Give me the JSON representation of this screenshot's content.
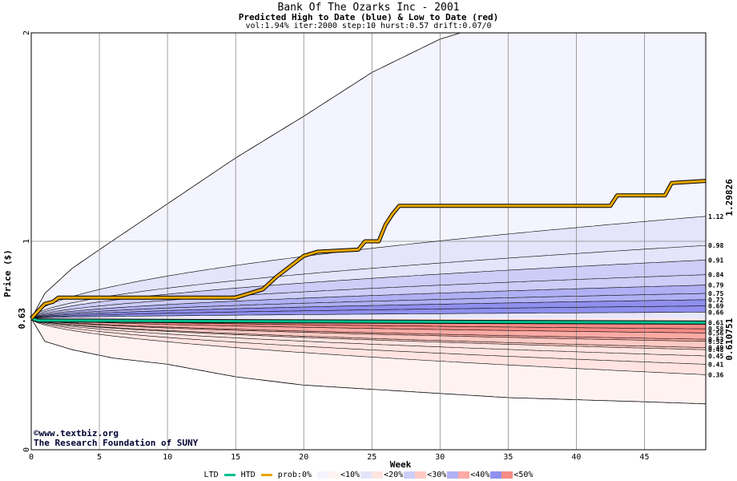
{
  "chart_data": {
    "type": "area",
    "title": "Bank Of The Ozarks Inc - 2001",
    "subtitle": "Predicted High to Date (blue) &  Low to Date (red)",
    "params_line": "vol:1.94% iter:2000 step:10 hurst:0.57 drift:0.07/0",
    "xlabel": "Week",
    "ylabel": "Price ($)",
    "xlim": [
      0,
      49.5
    ],
    "ylim": [
      0,
      2
    ],
    "x_ticks": [
      "0",
      "5",
      "10",
      "15",
      "20",
      "25",
      "30",
      "35",
      "40",
      "45"
    ],
    "y_ticks": [
      "0",
      "1",
      "2"
    ],
    "grid": true,
    "start_price": 0.63,
    "start_label": "0.63",
    "right_labels": {
      "htd_value": "1.29826",
      "ltd_value": "0.610751"
    },
    "htd_levels": [
      "1.12",
      "0.98",
      "0.91",
      "0.84",
      "0.79",
      "0.75",
      "0.72",
      "0.69",
      "0.66"
    ],
    "ltd_levels": [
      "0.61",
      "0.58",
      "0.56",
      "0.53",
      "0.52",
      "0.49",
      "0.48",
      "0.45",
      "0.41",
      "0.36"
    ],
    "htd_level_values": [
      1.12,
      0.98,
      0.91,
      0.84,
      0.79,
      0.75,
      0.72,
      0.69,
      0.66
    ],
    "ltd_level_values": [
      0.61,
      0.58,
      0.56,
      0.53,
      0.52,
      0.49,
      0.48,
      0.45,
      0.41,
      0.36
    ],
    "outer_high": [
      [
        0,
        0.63
      ],
      [
        1,
        0.75
      ],
      [
        3,
        0.87
      ],
      [
        5,
        0.96
      ],
      [
        10,
        1.18
      ],
      [
        15,
        1.4
      ],
      [
        20,
        1.6
      ],
      [
        25,
        1.81
      ],
      [
        30,
        1.97
      ],
      [
        31.5,
        2.0
      ],
      [
        49.5,
        2.0
      ]
    ],
    "outer_low": [
      [
        0,
        0.63
      ],
      [
        1,
        0.52
      ],
      [
        3,
        0.48
      ],
      [
        6,
        0.44
      ],
      [
        10,
        0.41
      ],
      [
        15,
        0.35
      ],
      [
        20,
        0.31
      ],
      [
        25,
        0.29
      ],
      [
        30,
        0.27
      ],
      [
        35,
        0.25
      ],
      [
        40,
        0.24
      ],
      [
        45,
        0.23
      ],
      [
        49.5,
        0.22
      ]
    ],
    "htd_series": {
      "name": "HTD",
      "color": "#e8a600",
      "points": [
        [
          0,
          0.63
        ],
        [
          1,
          0.7
        ],
        [
          1.6,
          0.71
        ],
        [
          2,
          0.73
        ],
        [
          15,
          0.73
        ],
        [
          16,
          0.75
        ],
        [
          17,
          0.77
        ],
        [
          18,
          0.83
        ],
        [
          19,
          0.88
        ],
        [
          20,
          0.93
        ],
        [
          21,
          0.95
        ],
        [
          24,
          0.96
        ],
        [
          24.5,
          1.0
        ],
        [
          25.5,
          1.0
        ],
        [
          26,
          1.08
        ],
        [
          26.5,
          1.13
        ],
        [
          27,
          1.17
        ],
        [
          42.5,
          1.17
        ],
        [
          43,
          1.22
        ],
        [
          46.5,
          1.22
        ],
        [
          47,
          1.28
        ],
        [
          49.5,
          1.29
        ]
      ]
    },
    "ltd_series": {
      "name": "LTD",
      "color": "#00c090",
      "points": [
        [
          0,
          0.63
        ],
        [
          0.5,
          0.62
        ],
        [
          49.5,
          0.61
        ]
      ]
    },
    "legend": {
      "ltd": "LTD",
      "htd": "HTD",
      "prob": "prob:0%",
      "bins": [
        "<10%",
        "<20%",
        "<30%",
        "<40%",
        "<50%"
      ],
      "blue_colors": [
        "#f4f4fe",
        "#e4e4fb",
        "#cdcdf8",
        "#b0b0f4",
        "#8f8fee"
      ],
      "red_colors": [
        "#fff3f2",
        "#ffe4e1",
        "#fecac4",
        "#fbaaa4",
        "#f68b86"
      ]
    },
    "credits": [
      "www.textbiz.org",
      "The Research Foundation of SUNY"
    ]
  }
}
